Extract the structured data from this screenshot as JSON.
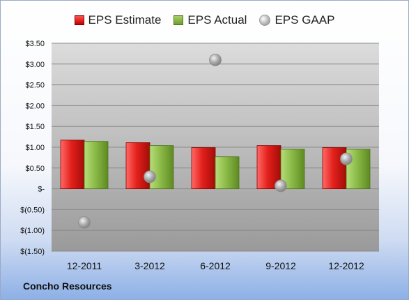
{
  "chart_data": {
    "type": "bar",
    "categories": [
      "12-2011",
      "3-2012",
      "6-2012",
      "9-2012",
      "12-2012"
    ],
    "series": [
      {
        "name": "EPS Estimate",
        "kind": "bar",
        "color": "#e0201c",
        "values": [
          1.17,
          1.11,
          0.99,
          1.04,
          0.99
        ]
      },
      {
        "name": "EPS Actual",
        "kind": "bar",
        "color": "#8cbb48",
        "values": [
          1.14,
          1.04,
          0.77,
          0.95,
          0.95
        ]
      },
      {
        "name": "EPS GAAP",
        "kind": "scatter",
        "color": "#b0b0b0",
        "values": [
          -0.81,
          0.29,
          3.1,
          0.07,
          0.72
        ]
      }
    ],
    "ylim": [
      -1.5,
      3.5
    ],
    "yticks": [
      3.5,
      3.0,
      2.5,
      2.0,
      1.5,
      1.0,
      0.5,
      0,
      -0.5,
      -1.0,
      -1.5
    ],
    "ytick_labels": [
      "$3.50",
      "$3.00",
      "$2.50",
      "$2.00",
      "$1.50",
      "$1.00",
      "$0.50",
      "$-",
      "$(0.50)",
      "$(1.00)",
      "$(1.50)"
    ],
    "grid": true,
    "legend_position": "top"
  },
  "footer": {
    "company": "Concho Resources"
  }
}
